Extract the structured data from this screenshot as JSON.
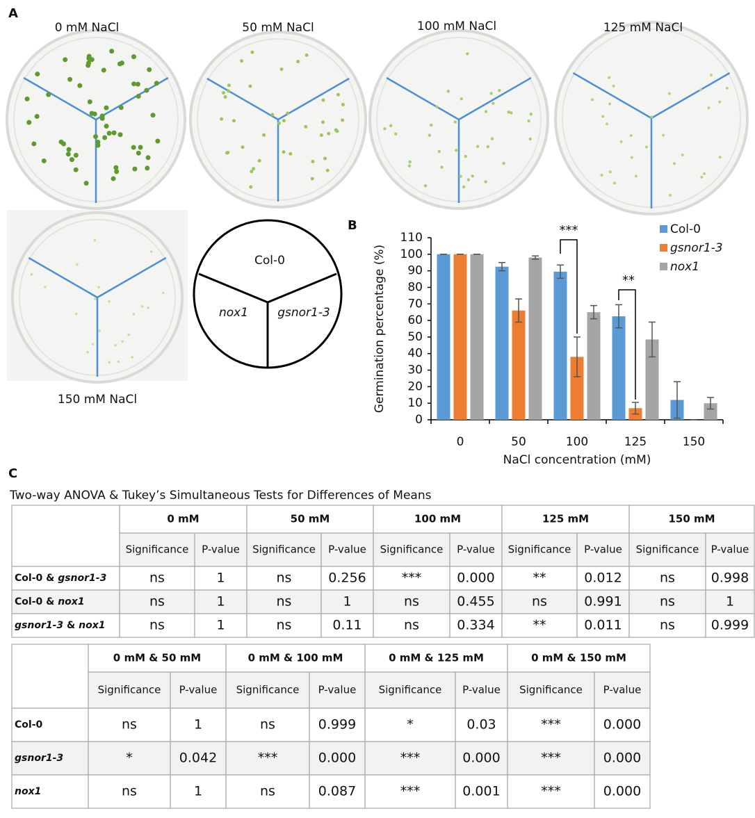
{
  "panel_labels": [
    "A",
    "B",
    "C"
  ],
  "plates": [
    "0 mM NaCl",
    "50 mM NaCl",
    "100 mM NaCl",
    "125 mM NaCl",
    "150 mM NaCl"
  ],
  "diagram": {
    "labels": [
      "Col-0",
      "nox1",
      "gsnor1-3"
    ]
  },
  "chart_data": {
    "type": "bar",
    "categories": [
      "0",
      "50",
      "100",
      "125",
      "150"
    ],
    "x_label": "NaCl concentration (mM)",
    "y_label": "Germination percentage (%)",
    "series": [
      {
        "name": "Col-0",
        "color": "#5b9bd5",
        "values": [
          100,
          92.5,
          89.5,
          62.5,
          12
        ],
        "errors": [
          0,
          2.5,
          4,
          7,
          11
        ]
      },
      {
        "name": "gsnor1-3",
        "color": "#ed7d31",
        "values": [
          100,
          66,
          38,
          7,
          0
        ],
        "errors": [
          0,
          7,
          12,
          3.5,
          0
        ]
      },
      {
        "name": "nox1",
        "color": "#a5a5a5",
        "values": [
          100,
          98,
          65,
          48.5,
          10
        ],
        "errors": [
          0,
          1,
          4,
          10.5,
          3.5
        ]
      }
    ],
    "ylim": [
      0,
      110
    ],
    "yticks": [
      0,
      10,
      20,
      30,
      40,
      50,
      60,
      70,
      80,
      90,
      100,
      110
    ],
    "legend": "upper right",
    "annotations": [
      "***",
      "**"
    ]
  },
  "table_title": "Two-way ANOVA & Tukey’s Simultaneous Tests for Differences of Means",
  "tables": [
    {
      "groups": [
        "0 mM",
        "50 mM",
        "100 mM",
        "125 mM",
        "150 mM"
      ],
      "subheaders": [
        "Significance",
        "P-value"
      ],
      "rows": [
        {
          "label": [
            "Col-0 & ",
            "gsnor1-3"
          ],
          "label_italic": [
            false,
            true
          ],
          "cells": [
            "ns",
            "1",
            "ns",
            "0.256",
            "***",
            "0.000",
            "**",
            "0.012",
            "ns",
            "0.998"
          ]
        },
        {
          "label": [
            "Col-0 & ",
            "nox1"
          ],
          "label_italic": [
            false,
            true
          ],
          "cells": [
            "ns",
            "1",
            "ns",
            "1",
            "ns",
            "0.455",
            "ns",
            "0.991",
            "ns",
            "1"
          ]
        },
        {
          "label": [
            "gsnor1-3",
            " & ",
            "nox1"
          ],
          "label_italic": [
            true,
            false,
            true
          ],
          "cells": [
            "ns",
            "1",
            "ns",
            "0.11",
            "ns",
            "0.334",
            "**",
            "0.011",
            "ns",
            "0.999"
          ]
        }
      ]
    },
    {
      "groups": [
        "0 mM & 50 mM",
        "0 mM & 100 mM",
        "0 mM & 125 mM",
        "0 mM & 150 mM"
      ],
      "subheaders": [
        "Significance",
        "P-value"
      ],
      "rows": [
        {
          "label": [
            "Col-0"
          ],
          "label_italic": [
            false
          ],
          "cells": [
            "ns",
            "1",
            "ns",
            "0.999",
            "*",
            "0.03",
            "***",
            "0.000"
          ]
        },
        {
          "label": [
            "gsnor1-3"
          ],
          "label_italic": [
            true
          ],
          "cells": [
            "*",
            "0.042",
            "***",
            "0.000",
            "***",
            "0.000",
            "***",
            "0.000"
          ]
        },
        {
          "label": [
            "nox1"
          ],
          "label_italic": [
            true
          ],
          "cells": [
            "ns",
            "1",
            "ns",
            "0.087",
            "***",
            "0.001",
            "***",
            "0.000"
          ]
        }
      ]
    }
  ]
}
